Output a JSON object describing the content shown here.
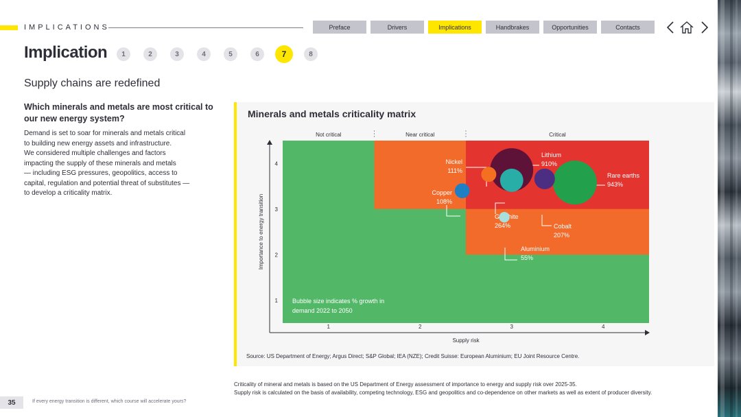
{
  "header": {
    "section_label": "IMPLICATIONS",
    "nav_tabs": [
      {
        "label": "Preface",
        "active": false
      },
      {
        "label": "Drivers",
        "active": false
      },
      {
        "label": "Implications",
        "active": true
      },
      {
        "label": "Handbrakes",
        "active": false
      },
      {
        "label": "Opportunities",
        "active": false
      },
      {
        "label": "Contacts",
        "active": false
      }
    ],
    "icons": [
      "chevron-left-icon",
      "home-icon",
      "chevron-right-icon"
    ]
  },
  "title": "Implication",
  "steps": [
    {
      "label": "1",
      "active": false
    },
    {
      "label": "2",
      "active": false
    },
    {
      "label": "3",
      "active": false
    },
    {
      "label": "4",
      "active": false
    },
    {
      "label": "5",
      "active": false
    },
    {
      "label": "6",
      "active": false
    },
    {
      "label": "7",
      "active": true
    },
    {
      "label": "8",
      "active": false
    }
  ],
  "subtitle": "Supply chains are redefined",
  "question": "Which minerals and metals are most critical to our new energy system?",
  "body_lines": [
    "Demand is set to soar for minerals and metals critical",
    "to building new energy assets and infrastructure.",
    "We considered multiple challenges and factors",
    "impacting the supply of these minerals and metals",
    "— including ESG pressures, geopolitics, access to",
    "capital, regulation and potential threat of substitutes —",
    "to develop a criticality matrix."
  ],
  "chart_data": {
    "type": "scatter",
    "title": "Minerals and metals criticality matrix",
    "xlabel": "Supply risk",
    "ylabel": "Importance to energy transition",
    "x_ticks": [
      1,
      2,
      3,
      4
    ],
    "y_ticks": [
      1,
      2,
      3,
      4
    ],
    "xlim": [
      0.5,
      4.5
    ],
    "ylim": [
      0.5,
      4.5
    ],
    "zone_labels": [
      "Not critical",
      "Near critical",
      "Critical"
    ],
    "zones": [
      {
        "name": "Not critical",
        "level": "not-critical",
        "color": "#52b868"
      },
      {
        "name": "Near critical",
        "level": "near-critical",
        "color": "#f26b2a"
      },
      {
        "name": "Critical",
        "level": "critical",
        "color": "#e3342f"
      }
    ],
    "size_note": "Bubble size indicates % growth in demand 2022 to 2050",
    "points": [
      {
        "name": "Lithium",
        "growth": "910%",
        "growth_value": 910,
        "x": 3.0,
        "y": 3.86,
        "color": "#5e1238"
      },
      {
        "name": "Rare earths",
        "growth": "943%",
        "growth_value": 943,
        "x": 3.69,
        "y": 3.58,
        "color": "#23a04b"
      },
      {
        "name": "Nickel",
        "growth": "111%",
        "growth_value": 111,
        "x": 2.75,
        "y": 3.76,
        "color": "#f37021"
      },
      {
        "name": "Copper",
        "growth": "108%",
        "growth_value": 108,
        "x": 2.46,
        "y": 3.4,
        "color": "#1f7fc4"
      },
      {
        "name": "Graphite",
        "growth": "264%",
        "growth_value": 264,
        "x": 3.0,
        "y": 3.63,
        "color": "#29ada7"
      },
      {
        "name": "Cobalt",
        "growth": "207%",
        "growth_value": 207,
        "x": 3.36,
        "y": 3.66,
        "color": "#4b2d82"
      },
      {
        "name": "Aluminium",
        "growth": "55%",
        "growth_value": 55,
        "x": 2.92,
        "y": 2.82,
        "color": "#a9dedd"
      }
    ],
    "source": "Source: US Department of Energy; Argus Direct; S&P Global; IEA (NZE); Credit Suisse: European Aluminium; EU Joint Resource Centre."
  },
  "footnote_lines": [
    "Criticality of mineral and metals is based on the US Department of Energy assessment of importance to energy and supply risk over 2025-35.",
    "Supply risk is calculated on the basis of availability, competing technology, ESG and geopolitics and co-dependence on other markets as well as extent of producer diversity."
  ],
  "page_number": "35",
  "tagline": "If every energy transition is different, which course will accelerate yours?"
}
